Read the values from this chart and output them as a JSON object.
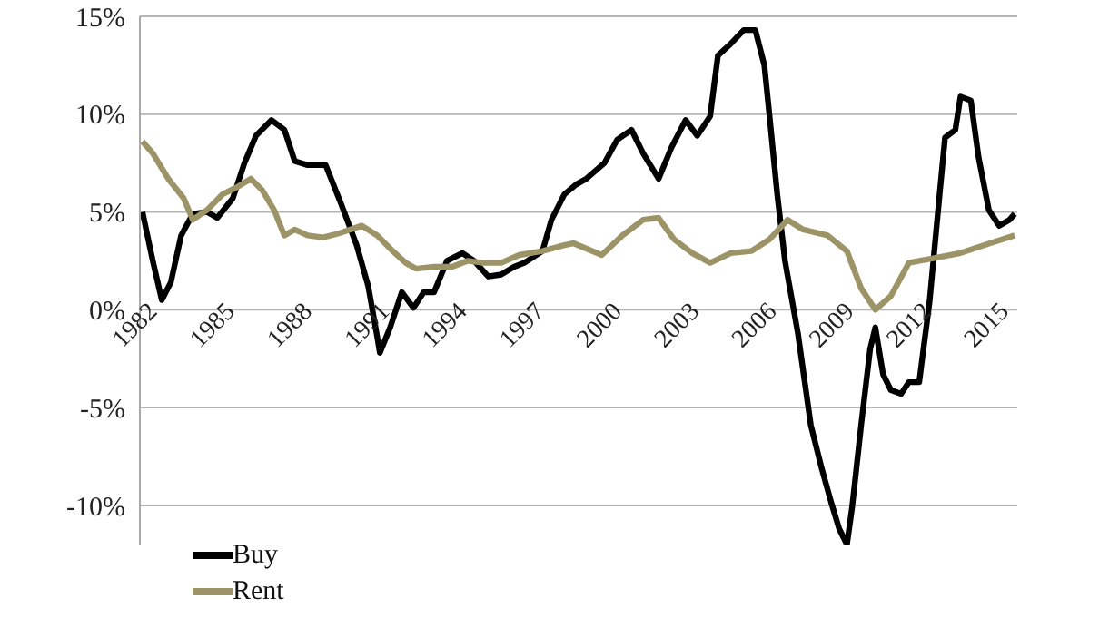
{
  "chart_data": {
    "type": "line",
    "xlim": [
      1982,
      2016
    ],
    "xticks": [
      1982,
      1985,
      1988,
      1991,
      1994,
      1997,
      2000,
      2003,
      2006,
      2009,
      2012,
      2015
    ],
    "ylim": [
      -12,
      15
    ],
    "yticks": [
      {
        "value": -10,
        "label": "-10%"
      },
      {
        "value": -5,
        "label": "-5%"
      },
      {
        "value": 0,
        "label": "0%"
      },
      {
        "value": 5,
        "label": "5%"
      },
      {
        "value": 10,
        "label": "10%"
      },
      {
        "value": 15,
        "label": "15%"
      }
    ],
    "grid": "y",
    "legend": "bottom left",
    "marker": "none",
    "line_style": "solid",
    "series": [
      {
        "name": "Buy",
        "color": "#000000",
        "x": [
          1982.1,
          1982.5,
          1982.85,
          1983.2,
          1983.6,
          1984.05,
          1984.6,
          1985.0,
          1985.6,
          1986.05,
          1986.5,
          1987.1,
          1987.6,
          1988.0,
          1988.5,
          1989.2,
          1989.8,
          1990.4,
          1990.85,
          1991.2,
          1991.3,
          1991.7,
          1992.15,
          1992.6,
          1993.0,
          1993.4,
          1993.9,
          1994.5,
          1994.95,
          1995.5,
          1996.0,
          1996.5,
          1996.9,
          1997.6,
          1997.95,
          1998.45,
          1998.9,
          1999.3,
          2000.0,
          2000.5,
          2001.05,
          2001.5,
          2002.1,
          2002.6,
          2003.15,
          2003.6,
          2004.1,
          2004.4,
          2004.9,
          2005.4,
          2005.85,
          2006.2,
          2006.4,
          2006.7,
          2007.0,
          2007.5,
          2008.0,
          2008.4,
          2008.8,
          2009.1,
          2009.4,
          2009.6,
          2009.95,
          2010.3,
          2010.5,
          2010.8,
          2011.1,
          2011.5,
          2011.8,
          2012.2,
          2012.6,
          2012.99,
          2013.2,
          2013.6,
          2013.8,
          2014.2,
          2014.5,
          2014.9,
          2015.3,
          2015.7,
          2015.9
        ],
        "values": [
          5.0,
          2.5,
          0.5,
          1.4,
          3.8,
          4.9,
          5.0,
          4.7,
          5.7,
          7.5,
          8.9,
          9.7,
          9.2,
          7.6,
          7.4,
          7.4,
          5.4,
          3.3,
          1.2,
          -1.4,
          -2.2,
          -0.9,
          0.9,
          0.1,
          0.9,
          0.9,
          2.5,
          2.9,
          2.5,
          1.7,
          1.8,
          2.2,
          2.4,
          3.0,
          4.6,
          5.9,
          6.4,
          6.7,
          7.5,
          8.7,
          9.2,
          8.0,
          6.7,
          8.3,
          9.7,
          8.9,
          9.9,
          13.0,
          13.6,
          14.3,
          14.3,
          12.5,
          9.9,
          5.9,
          2.5,
          -1.2,
          -5.9,
          -8.0,
          -9.9,
          -11.2,
          -12,
          -10.1,
          -5.9,
          -2.0,
          -0.9,
          -3.3,
          -4.1,
          -4.3,
          -3.7,
          -3.7,
          0.4,
          5.9,
          8.8,
          9.2,
          10.9,
          10.7,
          7.8,
          5.1,
          4.3,
          4.6,
          4.9
        ]
      },
      {
        "name": "Rent",
        "color": "#9c9466",
        "x": [
          1982.1,
          1982.5,
          1983.1,
          1983.7,
          1984.05,
          1984.6,
          1985.2,
          1985.8,
          1986.3,
          1986.75,
          1987.2,
          1987.6,
          1988.0,
          1988.5,
          1989.1,
          1989.7,
          1990.6,
          1991.2,
          1991.8,
          1992.3,
          1992.7,
          1993.4,
          1994.1,
          1994.7,
          1995.3,
          1996.0,
          1996.7,
          1997.6,
          1998.45,
          1998.8,
          1999.9,
          2000.7,
          2001.5,
          2002.1,
          2002.7,
          2003.4,
          2004.1,
          2004.9,
          2005.7,
          2006.4,
          2007.1,
          2007.7,
          2008.65,
          2009.4,
          2009.95,
          2010.5,
          2011.1,
          2011.8,
          2012.6,
          2013.8,
          2014.95,
          2015.9
        ],
        "values": [
          8.6,
          8.0,
          6.7,
          5.7,
          4.6,
          5.1,
          5.9,
          6.3,
          6.7,
          6.1,
          5.1,
          3.8,
          4.1,
          3.8,
          3.7,
          3.9,
          4.3,
          3.8,
          3.0,
          2.4,
          2.1,
          2.2,
          2.2,
          2.5,
          2.4,
          2.4,
          2.8,
          3.0,
          3.3,
          3.4,
          2.8,
          3.8,
          4.6,
          4.7,
          3.6,
          2.9,
          2.4,
          2.9,
          3.0,
          3.6,
          4.6,
          4.1,
          3.8,
          3.0,
          1.1,
          0.0,
          0.7,
          2.4,
          2.6,
          2.9,
          3.4,
          3.8
        ]
      }
    ]
  }
}
